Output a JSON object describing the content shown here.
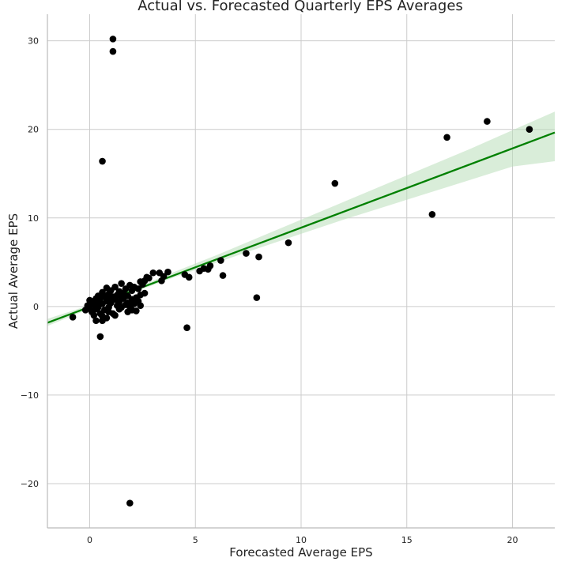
{
  "chart_data": {
    "type": "scatter",
    "title": "Actual vs. Forecasted Quarterly EPS Averages",
    "xlabel": "Forecasted Average EPS",
    "ylabel": "Actual Average EPS",
    "xlim": [
      -2,
      22
    ],
    "ylim": [
      -25,
      33
    ],
    "xticks": [
      0,
      5,
      10,
      15,
      20
    ],
    "yticks": [
      -20,
      -10,
      0,
      10,
      20,
      30
    ],
    "xtick_labels": [
      "0",
      "5",
      "10",
      "15",
      "20"
    ],
    "ytick_labels": [
      "−20",
      "−10",
      "0",
      "10",
      "20",
      "30"
    ],
    "grid": true,
    "colors": {
      "points": "#000000",
      "regression": "#008000",
      "band": "#b9dfb9"
    },
    "regression": {
      "slope": 0.895,
      "intercept": -0.05,
      "x_range": [
        -2,
        22
      ]
    },
    "confidence_band": [
      {
        "x": -2,
        "lower": -2.2,
        "upper": -1.4
      },
      {
        "x": 0,
        "lower": -0.25,
        "upper": 0.15
      },
      {
        "x": 2,
        "lower": 1.55,
        "upper": 1.95
      },
      {
        "x": 4,
        "lower": 3.3,
        "upper": 3.9
      },
      {
        "x": 6,
        "lower": 4.95,
        "upper": 5.8
      },
      {
        "x": 8,
        "lower": 6.6,
        "upper": 7.8
      },
      {
        "x": 10,
        "lower": 8.2,
        "upper": 9.8
      },
      {
        "x": 12,
        "lower": 9.8,
        "upper": 11.8
      },
      {
        "x": 14,
        "lower": 11.3,
        "upper": 13.8
      },
      {
        "x": 16,
        "lower": 12.8,
        "upper": 15.8
      },
      {
        "x": 18,
        "lower": 14.3,
        "upper": 17.8
      },
      {
        "x": 20,
        "lower": 15.8,
        "upper": 19.9
      },
      {
        "x": 22,
        "lower": 16.4,
        "upper": 22.0
      }
    ],
    "points": [
      [
        1.1,
        30.2
      ],
      [
        1.1,
        28.8
      ],
      [
        0.6,
        16.4
      ],
      [
        1.9,
        -22.2
      ],
      [
        0.5,
        -3.4
      ],
      [
        4.6,
        -2.4
      ],
      [
        7.9,
        1.0
      ],
      [
        -0.8,
        -1.2
      ],
      [
        20.8,
        20.0
      ],
      [
        18.8,
        20.9
      ],
      [
        16.9,
        19.1
      ],
      [
        11.6,
        13.9
      ],
      [
        16.2,
        10.4
      ],
      [
        9.4,
        7.2
      ],
      [
        8.0,
        5.6
      ],
      [
        7.4,
        6.0
      ],
      [
        6.2,
        5.2
      ],
      [
        6.3,
        3.5
      ],
      [
        5.7,
        4.6
      ],
      [
        5.6,
        4.2
      ],
      [
        5.4,
        4.3
      ],
      [
        5.2,
        4.0
      ],
      [
        4.7,
        3.3
      ],
      [
        4.5,
        3.6
      ],
      [
        3.7,
        3.9
      ],
      [
        3.5,
        3.4
      ],
      [
        3.3,
        3.8
      ],
      [
        3.0,
        3.8
      ],
      [
        3.4,
        2.9
      ],
      [
        2.8,
        3.2
      ],
      [
        2.7,
        3.3
      ],
      [
        2.6,
        2.9
      ],
      [
        2.5,
        2.5
      ],
      [
        2.4,
        2.8
      ],
      [
        2.3,
        2.0
      ],
      [
        2.1,
        2.2
      ],
      [
        2.0,
        1.8
      ],
      [
        1.9,
        2.4
      ],
      [
        1.7,
        2.0
      ],
      [
        1.5,
        2.6
      ],
      [
        1.4,
        1.7
      ],
      [
        1.2,
        2.2
      ],
      [
        0.8,
        2.1
      ],
      [
        1.0,
        1.8
      ],
      [
        0.6,
        1.6
      ],
      [
        0.9,
        1.4
      ],
      [
        1.3,
        1.3
      ],
      [
        1.6,
        1.5
      ],
      [
        1.8,
        1.2
      ],
      [
        2.2,
        1.0
      ],
      [
        2.4,
        1.3
      ],
      [
        2.6,
        1.5
      ],
      [
        2.3,
        0.6
      ],
      [
        2.2,
        -0.5
      ],
      [
        2.0,
        -0.4
      ],
      [
        1.8,
        -0.6
      ],
      [
        1.4,
        -0.3
      ],
      [
        1.1,
        -0.8
      ],
      [
        1.2,
        -1.0
      ],
      [
        0.8,
        -1.3
      ],
      [
        0.6,
        -1.6
      ],
      [
        0.3,
        -1.6
      ],
      [
        0.2,
        -1.0
      ],
      [
        0.1,
        -0.6
      ],
      [
        -0.2,
        -0.4
      ],
      [
        0.0,
        -0.2
      ],
      [
        0.2,
        0.2
      ],
      [
        0.4,
        0.5
      ],
      [
        0.5,
        0.9
      ],
      [
        0.7,
        1.1
      ],
      [
        0.3,
        0.9
      ],
      [
        0.1,
        0.4
      ],
      [
        -0.1,
        0.1
      ],
      [
        0.0,
        0.7
      ],
      [
        0.4,
        1.2
      ],
      [
        0.6,
        0.3
      ],
      [
        0.8,
        0.6
      ],
      [
        1.0,
        0.4
      ],
      [
        1.2,
        0.8
      ],
      [
        1.4,
        0.5
      ],
      [
        1.6,
        0.9
      ],
      [
        1.8,
        0.4
      ],
      [
        2.0,
        0.8
      ],
      [
        1.5,
        1.0
      ],
      [
        1.7,
        0.2
      ],
      [
        1.3,
        0.1
      ],
      [
        0.9,
        -0.1
      ],
      [
        0.7,
        -0.4
      ],
      [
        0.5,
        -0.8
      ],
      [
        0.3,
        -0.3
      ],
      [
        0.9,
        0.9
      ],
      [
        1.1,
        1.1
      ],
      [
        0.2,
        0.6
      ],
      [
        0.4,
        -0.1
      ],
      [
        0.6,
        -1.1
      ],
      [
        0.9,
        -0.6
      ],
      [
        1.5,
        -0.1
      ],
      [
        1.9,
        0.0
      ],
      [
        2.1,
        0.3
      ],
      [
        2.4,
        0.1
      ]
    ]
  }
}
